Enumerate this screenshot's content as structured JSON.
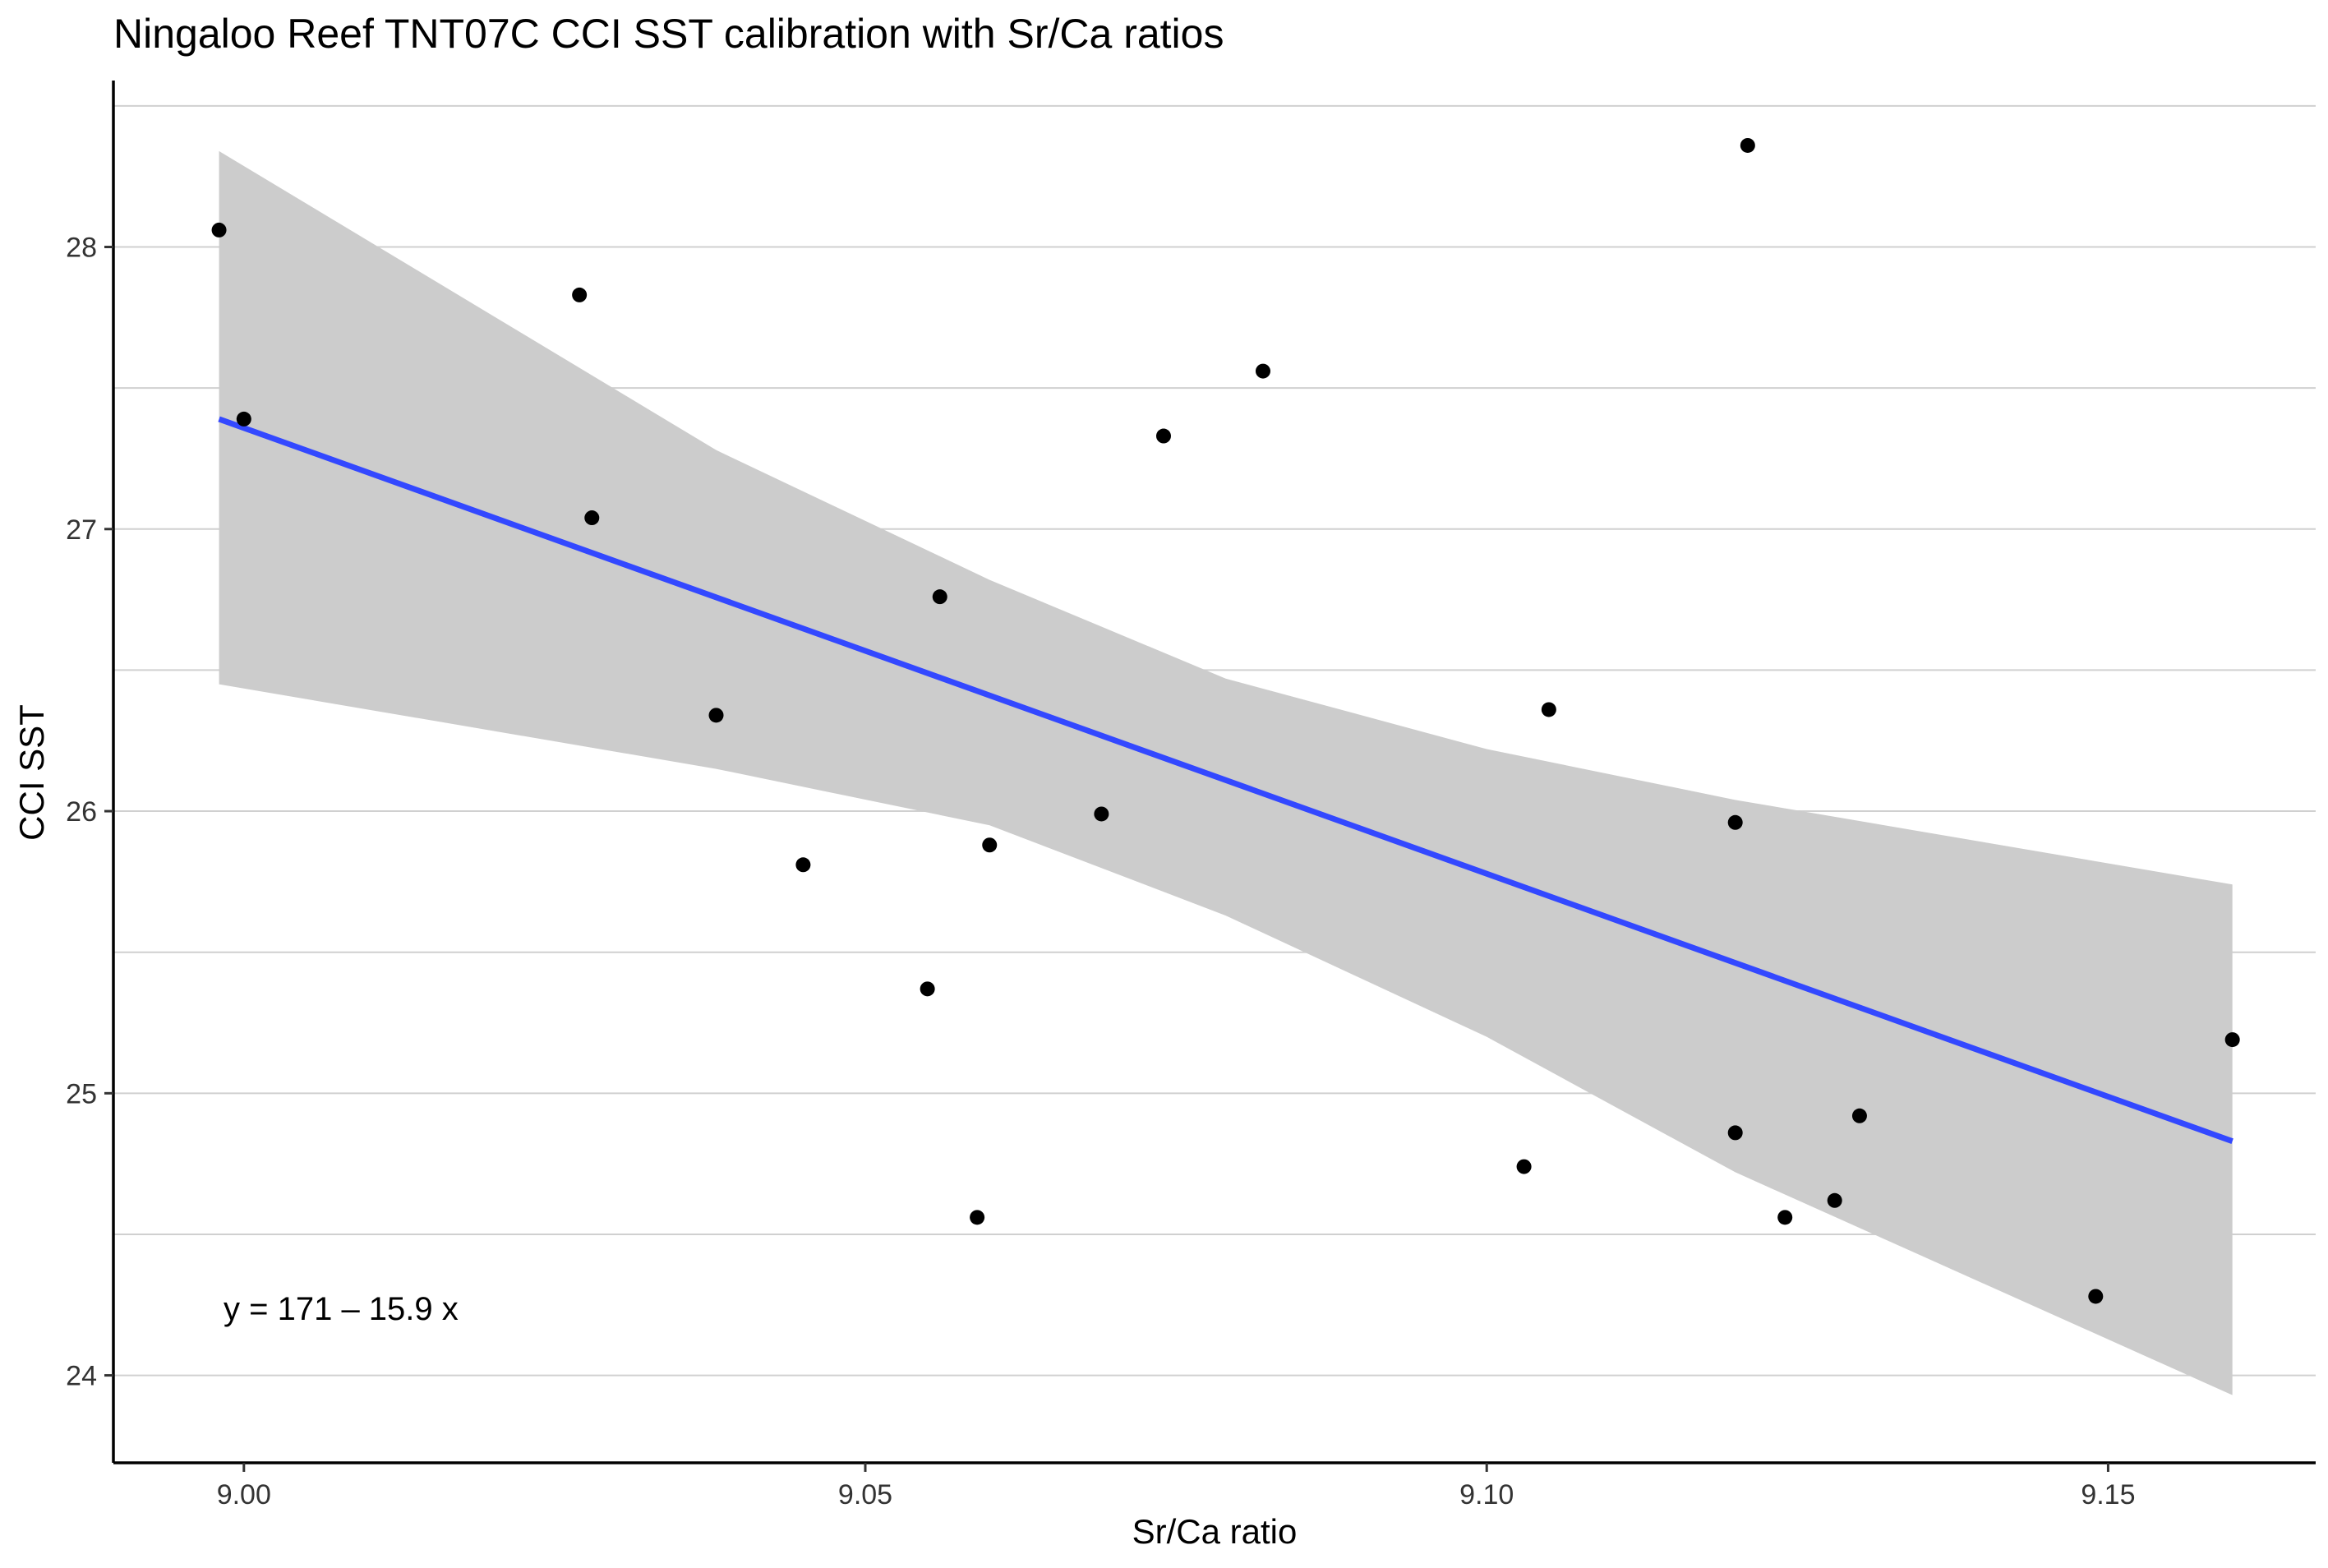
{
  "chart_data": {
    "type": "scatter",
    "title": "Ningaloo Reef TNT07C CCI SST calibration with Sr/Ca ratios",
    "xlabel": "Sr/Ca ratio",
    "ylabel": "CCI SST",
    "xlim": [
      8.9895,
      9.1667
    ],
    "ylim": [
      23.69,
      28.59
    ],
    "xticks": [
      9.0,
      9.05,
      9.1,
      9.15
    ],
    "xtick_labels": [
      "9.00",
      "9.05",
      "9.10",
      "9.15"
    ],
    "yticks": [
      24,
      25,
      26,
      27,
      28
    ],
    "ytick_labels": [
      "24",
      "25",
      "26",
      "27",
      "28"
    ],
    "y_gridlines": [
      24.5,
      25.5,
      26.5,
      27.5,
      28.5
    ],
    "grid": "horizontal",
    "points": [
      {
        "x": 8.998,
        "y": 28.06
      },
      {
        "x": 9.0,
        "y": 27.39
      },
      {
        "x": 9.027,
        "y": 27.83
      },
      {
        "x": 9.028,
        "y": 27.04
      },
      {
        "x": 9.038,
        "y": 26.34
      },
      {
        "x": 9.045,
        "y": 25.81
      },
      {
        "x": 9.055,
        "y": 25.37
      },
      {
        "x": 9.056,
        "y": 26.76
      },
      {
        "x": 9.059,
        "y": 24.56
      },
      {
        "x": 9.06,
        "y": 25.88
      },
      {
        "x": 9.069,
        "y": 25.99
      },
      {
        "x": 9.074,
        "y": 27.33
      },
      {
        "x": 9.082,
        "y": 27.56
      },
      {
        "x": 9.103,
        "y": 24.74
      },
      {
        "x": 9.105,
        "y": 26.36
      },
      {
        "x": 9.12,
        "y": 25.96
      },
      {
        "x": 9.12,
        "y": 24.86
      },
      {
        "x": 9.121,
        "y": 28.36
      },
      {
        "x": 9.124,
        "y": 24.56
      },
      {
        "x": 9.128,
        "y": 24.62
      },
      {
        "x": 9.13,
        "y": 24.92
      },
      {
        "x": 9.149,
        "y": 24.28
      },
      {
        "x": 9.16,
        "y": 25.19
      }
    ],
    "regression": {
      "x_range": [
        8.998,
        9.16
      ],
      "y_start": 27.39,
      "y_end": 24.83,
      "line_color": "#3348ff",
      "ribbon_color": "#cccccc",
      "ribbon": [
        {
          "x": 8.998,
          "lower": 26.45,
          "upper": 28.34
        },
        {
          "x": 9.038,
          "lower": 26.15,
          "upper": 27.28
        },
        {
          "x": 9.06,
          "lower": 25.95,
          "upper": 26.82
        },
        {
          "x": 9.079,
          "lower": 25.63,
          "upper": 26.47
        },
        {
          "x": 9.1,
          "lower": 25.2,
          "upper": 26.22
        },
        {
          "x": 9.12,
          "lower": 24.72,
          "upper": 26.04
        },
        {
          "x": 9.16,
          "lower": 23.93,
          "upper": 25.74
        }
      ]
    },
    "annotation": "y = 171 – 15.9 x",
    "point_color": "#000000"
  }
}
